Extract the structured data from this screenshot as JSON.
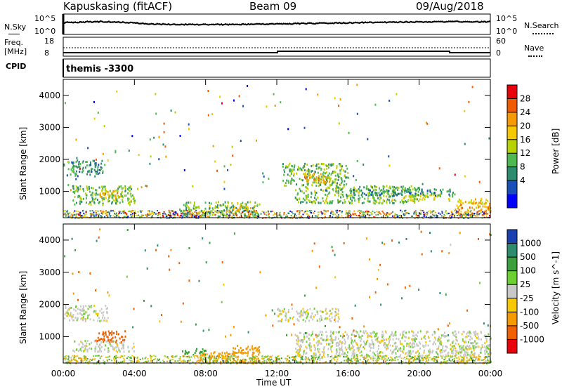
{
  "header": {
    "station": "Kapuskasing (fitACF)",
    "beam": "Beam 09",
    "date": "09/Aug/2018"
  },
  "noise_panel": {
    "left_label": "N.Sky",
    "right_label": "N.Search",
    "left_ticks": [
      "10^5",
      "10^0"
    ],
    "right_ticks": [
      "10^5",
      "10^0"
    ]
  },
  "freq_panel": {
    "left_label": "Freq.",
    "left_unit": "[MHz]",
    "right_label": "Nave",
    "left_ticks": [
      "18",
      "8"
    ],
    "right_ticks": [
      "60",
      "0"
    ]
  },
  "cpid": {
    "label": "CPID",
    "value": "themis -3300"
  },
  "x_axis": {
    "label": "Time UT",
    "ticks": [
      "00:00",
      "04:00",
      "08:00",
      "12:00",
      "16:00",
      "20:00",
      "00:00"
    ]
  },
  "y_axis": {
    "label": "Slant Range [km]",
    "ticks": [
      "4000",
      "3000",
      "2000",
      "1000"
    ]
  },
  "chart_data": [
    {
      "type": "heatmap",
      "panel": "power",
      "xlabel": "Time UT",
      "ylabel": "Slant Range [km]",
      "x_range_hours": [
        0,
        24
      ],
      "ylim": [
        180,
        4500
      ],
      "colorbar": {
        "label": "Power [dB]",
        "ticks": [
          "28",
          "24",
          "20",
          "16",
          "12",
          "8",
          "4"
        ],
        "colors": [
          "#e8000b",
          "#f05a00",
          "#f59a00",
          "#f5c800",
          "#b8d200",
          "#50b850",
          "#2e8b6e",
          "#1a4fb8",
          "#0000ff"
        ]
      },
      "regions": [
        {
          "t": [
            0.0,
            2.2
          ],
          "r": [
            1500,
            2000
          ],
          "value": 8
        },
        {
          "t": [
            0.5,
            4.0
          ],
          "r": [
            600,
            1200
          ],
          "value": 12
        },
        {
          "t": [
            2.0,
            3.2
          ],
          "r": [
            800,
            1100
          ],
          "value": 20
        },
        {
          "t": [
            6.5,
            11.0
          ],
          "r": [
            250,
            700
          ],
          "value": 12
        },
        {
          "t": [
            9.5,
            10.5
          ],
          "r": [
            400,
            650
          ],
          "value": 20
        },
        {
          "t": [
            12.3,
            16.0
          ],
          "r": [
            1200,
            1900
          ],
          "value": 12
        },
        {
          "t": [
            13.5,
            15.0
          ],
          "r": [
            1300,
            1600
          ],
          "value": 20
        },
        {
          "t": [
            13.0,
            20.0
          ],
          "r": [
            650,
            1200
          ],
          "value": 12
        },
        {
          "t": [
            19.0,
            22.0
          ],
          "r": [
            750,
            950
          ],
          "value": 16
        },
        {
          "t": [
            22.0,
            24.0
          ],
          "r": [
            300,
            800
          ],
          "value": 20
        },
        {
          "t": [
            16.0,
            22.0
          ],
          "r": [
            900,
            1100
          ],
          "value": 8
        }
      ]
    },
    {
      "type": "heatmap",
      "panel": "velocity",
      "xlabel": "Time UT",
      "ylabel": "Slant Range [km]",
      "x_range_hours": [
        0,
        24
      ],
      "ylim": [
        180,
        4500
      ],
      "colorbar": {
        "label": "Velocity [m s^-1]",
        "ticks": [
          "1000",
          "500",
          "100",
          "25",
          "-25",
          "-100",
          "-500",
          "-1000"
        ],
        "colors": [
          "#1a3fb0",
          "#2e8b6e",
          "#3c9e3c",
          "#6ccf32",
          "#c8c8c8",
          "#f5c800",
          "#f59a00",
          "#f06000",
          "#e8000b"
        ]
      },
      "regions": [
        {
          "t": [
            0.0,
            2.5
          ],
          "r": [
            1500,
            2000
          ],
          "value": 0
        },
        {
          "t": [
            0.5,
            4.0
          ],
          "r": [
            550,
            900
          ],
          "value": 0
        },
        {
          "t": [
            1.8,
            3.5
          ],
          "r": [
            850,
            1200
          ],
          "value": -500
        },
        {
          "t": [
            6.5,
            8.0
          ],
          "r": [
            450,
            650
          ],
          "value": 100
        },
        {
          "t": [
            7.5,
            11.0
          ],
          "r": [
            200,
            550
          ],
          "value": -100
        },
        {
          "t": [
            9.5,
            11.0
          ],
          "r": [
            500,
            750
          ],
          "value": -100
        },
        {
          "t": [
            12.0,
            15.5
          ],
          "r": [
            1500,
            1900
          ],
          "value": 0
        },
        {
          "t": [
            13.0,
            24.0
          ],
          "r": [
            400,
            1200
          ],
          "value": 0
        },
        {
          "t": [
            22.0,
            24.0
          ],
          "r": [
            250,
            750
          ],
          "value": 0
        }
      ]
    }
  ]
}
